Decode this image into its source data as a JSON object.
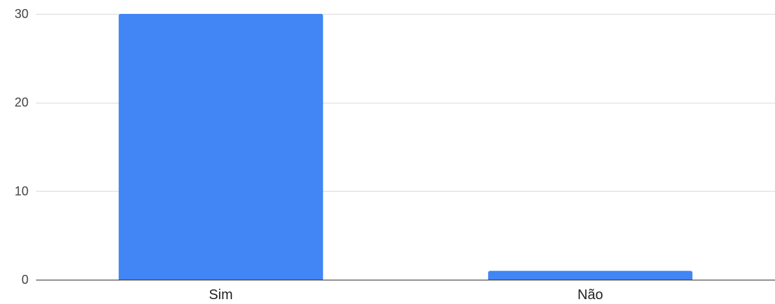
{
  "chart_data": {
    "type": "bar",
    "categories": [
      "Sim",
      "Não"
    ],
    "values": [
      30,
      1
    ],
    "title": "",
    "xlabel": "",
    "ylabel": "",
    "ylim": [
      0,
      30
    ],
    "yticks": [
      0,
      10,
      20,
      30
    ],
    "grid": true,
    "bar_color": "#4285f4",
    "legend": "none"
  }
}
